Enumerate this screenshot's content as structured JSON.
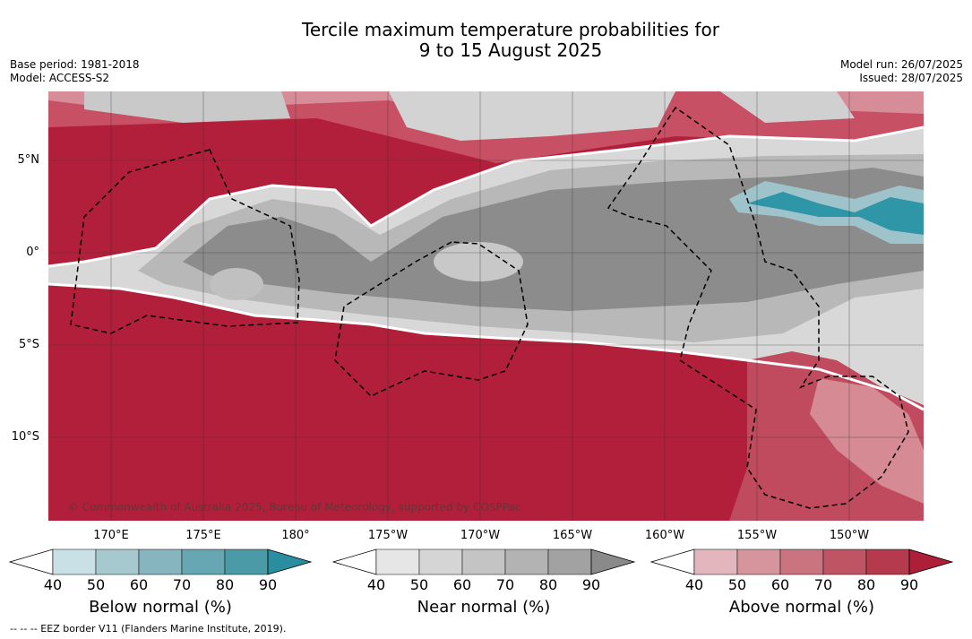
{
  "title_line1": "Tercile maximum temperature probabilities for",
  "title_line2": "9 to 15 August 2025",
  "meta_left": {
    "base_period": "Base period: 1981-2018",
    "model": "Model: ACCESS-S2"
  },
  "meta_right": {
    "model_run": "Model run: 26/07/2025",
    "issued": "Issued: 28/07/2025"
  },
  "map": {
    "lat_labels": [
      "5°N",
      "0°",
      "5°S",
      "10°S"
    ],
    "lon_labels": [
      "170°E",
      "175°E",
      "180°",
      "175°W",
      "170°W",
      "165°W",
      "160°W",
      "155°W",
      "150°W"
    ],
    "copyright": "© Commonwealth of Australia 2025, Bureau of Meteorology, supported by COSPPac",
    "colors": {
      "above": "#b11f3a",
      "near": "#8a8a8a",
      "below": "#2a95a8"
    }
  },
  "colorbars": [
    {
      "title": "Below normal (%)",
      "ticks": [
        "40",
        "50",
        "60",
        "70",
        "80",
        "90"
      ],
      "colors": [
        "#c8e0e6",
        "#a6c8cf",
        "#86b5bf",
        "#66a7b3",
        "#4a9aa8",
        "#2a8ea0"
      ]
    },
    {
      "title": "Near normal (%)",
      "ticks": [
        "40",
        "50",
        "60",
        "70",
        "80",
        "90"
      ],
      "colors": [
        "#e6e6e6",
        "#d5d5d5",
        "#c4c4c4",
        "#b3b3b3",
        "#a2a2a2",
        "#8a8a8a"
      ]
    },
    {
      "title": "Above normal (%)",
      "ticks": [
        "40",
        "50",
        "60",
        "70",
        "80",
        "90"
      ],
      "colors": [
        "#e2b6bc",
        "#d6959d",
        "#ca7480",
        "#bf5564",
        "#b63a4d",
        "#ad1f38"
      ]
    }
  ],
  "footnote": "--  --  -- EEZ border V11 (Flanders Marine Institute, 2019)."
}
